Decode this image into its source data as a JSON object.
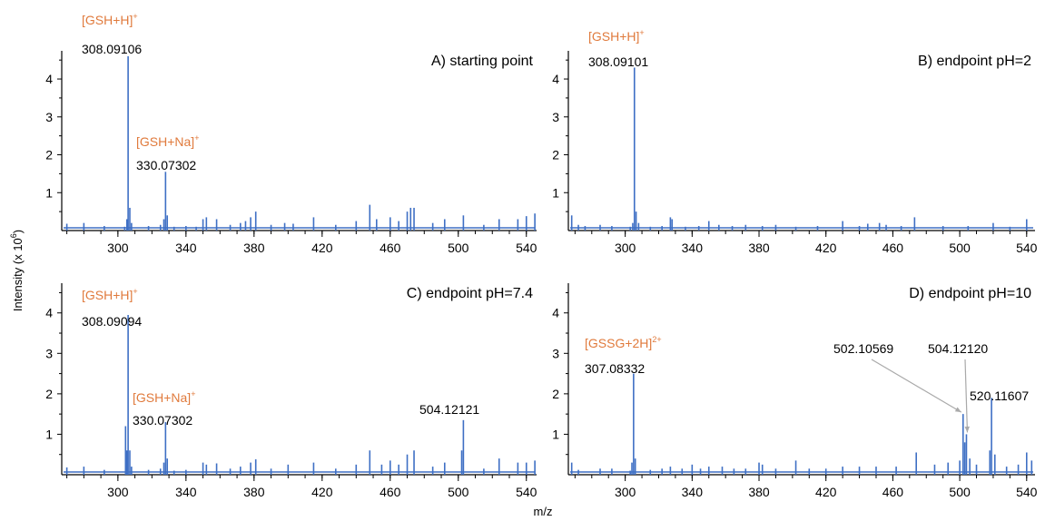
{
  "figure": {
    "xlabel": "m/z",
    "ylabel": "Intensity (x 10",
    "ylabel_sup": "6",
    "ylabel_end": ")"
  },
  "colors": {
    "spectrum": "#3e6fc4",
    "ion_label": "#e07a3c",
    "arrow": "#a9a9a9"
  },
  "chart_data": [
    {
      "type": "line",
      "panel": "A",
      "title": "A) starting point",
      "xlim": [
        267,
        546
      ],
      "ylim": [
        0,
        4.6
      ],
      "x_ticks": [
        300,
        340,
        380,
        420,
        460,
        500,
        540
      ],
      "y_ticks": [
        1,
        2,
        3,
        4
      ],
      "peaks": [
        {
          "x": 270,
          "y": 0.18
        },
        {
          "x": 280,
          "y": 0.2
        },
        {
          "x": 292,
          "y": 0.12
        },
        {
          "x": 304,
          "y": 0.1
        },
        {
          "x": 305.3,
          "y": 0.3
        },
        {
          "x": 306,
          "y": 4.6
        },
        {
          "x": 307,
          "y": 0.6
        },
        {
          "x": 308,
          "y": 0.2
        },
        {
          "x": 318,
          "y": 0.12
        },
        {
          "x": 325,
          "y": 0.15
        },
        {
          "x": 327,
          "y": 0.3
        },
        {
          "x": 328,
          "y": 1.55
        },
        {
          "x": 329,
          "y": 0.4
        },
        {
          "x": 333,
          "y": 0.1
        },
        {
          "x": 340,
          "y": 0.12
        },
        {
          "x": 346,
          "y": 0.1
        },
        {
          "x": 350,
          "y": 0.3
        },
        {
          "x": 352,
          "y": 0.35
        },
        {
          "x": 358,
          "y": 0.3
        },
        {
          "x": 366,
          "y": 0.15
        },
        {
          "x": 372,
          "y": 0.2
        },
        {
          "x": 375,
          "y": 0.25
        },
        {
          "x": 378,
          "y": 0.35
        },
        {
          "x": 381,
          "y": 0.5
        },
        {
          "x": 390,
          "y": 0.15
        },
        {
          "x": 398,
          "y": 0.2
        },
        {
          "x": 403,
          "y": 0.18
        },
        {
          "x": 415,
          "y": 0.35
        },
        {
          "x": 428,
          "y": 0.15
        },
        {
          "x": 440,
          "y": 0.25
        },
        {
          "x": 448,
          "y": 0.68
        },
        {
          "x": 452,
          "y": 0.3
        },
        {
          "x": 460,
          "y": 0.35
        },
        {
          "x": 465,
          "y": 0.25
        },
        {
          "x": 470,
          "y": 0.5
        },
        {
          "x": 472,
          "y": 0.6
        },
        {
          "x": 474,
          "y": 0.6
        },
        {
          "x": 485,
          "y": 0.2
        },
        {
          "x": 492,
          "y": 0.3
        },
        {
          "x": 503,
          "y": 0.4
        },
        {
          "x": 515,
          "y": 0.15
        },
        {
          "x": 524,
          "y": 0.3
        },
        {
          "x": 535,
          "y": 0.3
        },
        {
          "x": 540,
          "y": 0.38
        },
        {
          "x": 545,
          "y": 0.45
        }
      ],
      "annotations": [
        {
          "ion": "[GSH+H]",
          "charge": "+",
          "mz": "308.09106",
          "x": 306
        },
        {
          "ion": "[GSH+Na]",
          "charge": "+",
          "mz": "330.07302",
          "x": 328
        }
      ]
    },
    {
      "type": "line",
      "panel": "B",
      "title": "B) endpoint pH=2",
      "xlim": [
        266,
        545
      ],
      "ylim": [
        0,
        4.6
      ],
      "x_ticks": [
        300,
        340,
        380,
        420,
        460,
        500,
        540
      ],
      "y_ticks": [
        1,
        2,
        3,
        4
      ],
      "peaks": [
        {
          "x": 268,
          "y": 0.4
        },
        {
          "x": 272,
          "y": 0.15
        },
        {
          "x": 276,
          "y": 0.12
        },
        {
          "x": 285,
          "y": 0.15
        },
        {
          "x": 292,
          "y": 0.12
        },
        {
          "x": 303,
          "y": 0.1
        },
        {
          "x": 304.5,
          "y": 0.2
        },
        {
          "x": 305.5,
          "y": 4.3
        },
        {
          "x": 306.5,
          "y": 0.5
        },
        {
          "x": 308,
          "y": 0.2
        },
        {
          "x": 315,
          "y": 0.1
        },
        {
          "x": 322,
          "y": 0.12
        },
        {
          "x": 327,
          "y": 0.35
        },
        {
          "x": 328,
          "y": 0.3
        },
        {
          "x": 336,
          "y": 0.1
        },
        {
          "x": 344,
          "y": 0.12
        },
        {
          "x": 350,
          "y": 0.25
        },
        {
          "x": 356,
          "y": 0.15
        },
        {
          "x": 364,
          "y": 0.12
        },
        {
          "x": 372,
          "y": 0.15
        },
        {
          "x": 382,
          "y": 0.12
        },
        {
          "x": 390,
          "y": 0.15
        },
        {
          "x": 402,
          "y": 0.1
        },
        {
          "x": 415,
          "y": 0.12
        },
        {
          "x": 430,
          "y": 0.25
        },
        {
          "x": 440,
          "y": 0.12
        },
        {
          "x": 445,
          "y": 0.18
        },
        {
          "x": 452,
          "y": 0.2
        },
        {
          "x": 456,
          "y": 0.15
        },
        {
          "x": 465,
          "y": 0.12
        },
        {
          "x": 473,
          "y": 0.35
        },
        {
          "x": 490,
          "y": 0.12
        },
        {
          "x": 505,
          "y": 0.12
        },
        {
          "x": 520,
          "y": 0.2
        },
        {
          "x": 530,
          "y": 0.1
        },
        {
          "x": 540,
          "y": 0.3
        }
      ],
      "annotations": [
        {
          "ion": "[GSH+H]",
          "charge": "+",
          "mz": "308.09101",
          "x": 305.5
        }
      ]
    },
    {
      "type": "line",
      "panel": "C",
      "title": "C) endpoint pH=7.4",
      "xlim": [
        267,
        546
      ],
      "ylim": [
        0,
        4.6
      ],
      "x_ticks": [
        300,
        340,
        380,
        420,
        460,
        500,
        540
      ],
      "y_ticks": [
        1,
        2,
        3,
        4
      ],
      "peaks": [
        {
          "x": 270,
          "y": 0.18
        },
        {
          "x": 280,
          "y": 0.2
        },
        {
          "x": 292,
          "y": 0.12
        },
        {
          "x": 304.5,
          "y": 1.2
        },
        {
          "x": 305.3,
          "y": 0.6
        },
        {
          "x": 306,
          "y": 3.95
        },
        {
          "x": 307,
          "y": 0.6
        },
        {
          "x": 308,
          "y": 0.2
        },
        {
          "x": 318,
          "y": 0.12
        },
        {
          "x": 325,
          "y": 0.15
        },
        {
          "x": 327,
          "y": 0.3
        },
        {
          "x": 328,
          "y": 1.3
        },
        {
          "x": 329,
          "y": 0.4
        },
        {
          "x": 333,
          "y": 0.1
        },
        {
          "x": 340,
          "y": 0.12
        },
        {
          "x": 350,
          "y": 0.3
        },
        {
          "x": 352,
          "y": 0.25
        },
        {
          "x": 358,
          "y": 0.28
        },
        {
          "x": 366,
          "y": 0.15
        },
        {
          "x": 372,
          "y": 0.2
        },
        {
          "x": 378,
          "y": 0.3
        },
        {
          "x": 381,
          "y": 0.38
        },
        {
          "x": 390,
          "y": 0.15
        },
        {
          "x": 400,
          "y": 0.25
        },
        {
          "x": 415,
          "y": 0.3
        },
        {
          "x": 428,
          "y": 0.15
        },
        {
          "x": 440,
          "y": 0.25
        },
        {
          "x": 448,
          "y": 0.6
        },
        {
          "x": 455,
          "y": 0.25
        },
        {
          "x": 460,
          "y": 0.35
        },
        {
          "x": 465,
          "y": 0.25
        },
        {
          "x": 470,
          "y": 0.5
        },
        {
          "x": 474,
          "y": 0.6
        },
        {
          "x": 485,
          "y": 0.2
        },
        {
          "x": 492,
          "y": 0.3
        },
        {
          "x": 502,
          "y": 0.6
        },
        {
          "x": 503,
          "y": 1.35
        },
        {
          "x": 515,
          "y": 0.15
        },
        {
          "x": 524,
          "y": 0.4
        },
        {
          "x": 535,
          "y": 0.3
        },
        {
          "x": 540,
          "y": 0.3
        },
        {
          "x": 545,
          "y": 0.35
        }
      ],
      "annotations": [
        {
          "ion": "[GSH+H]",
          "charge": "+",
          "mz": "308.09094",
          "x": 306
        },
        {
          "ion": "[GSH+Na]",
          "charge": "+",
          "mz": "330.07302",
          "x": 328
        },
        {
          "ion": "",
          "charge": "",
          "mz": "504.12121",
          "x": 503
        }
      ]
    },
    {
      "type": "line",
      "panel": "D",
      "title": "D) endpoint pH=10",
      "xlim": [
        266,
        545
      ],
      "ylim": [
        0,
        4.6
      ],
      "x_ticks": [
        300,
        340,
        380,
        420,
        460,
        500,
        540
      ],
      "y_ticks": [
        1,
        2,
        3,
        4
      ],
      "peaks": [
        {
          "x": 268,
          "y": 0.3
        },
        {
          "x": 272,
          "y": 0.12
        },
        {
          "x": 285,
          "y": 0.15
        },
        {
          "x": 292,
          "y": 0.15
        },
        {
          "x": 303,
          "y": 0.1
        },
        {
          "x": 304,
          "y": 0.3
        },
        {
          "x": 305,
          "y": 2.5
        },
        {
          "x": 306,
          "y": 0.4
        },
        {
          "x": 315,
          "y": 0.12
        },
        {
          "x": 322,
          "y": 0.15
        },
        {
          "x": 327,
          "y": 0.2
        },
        {
          "x": 334,
          "y": 0.15
        },
        {
          "x": 340,
          "y": 0.25
        },
        {
          "x": 345,
          "y": 0.15
        },
        {
          "x": 350,
          "y": 0.2
        },
        {
          "x": 358,
          "y": 0.2
        },
        {
          "x": 365,
          "y": 0.15
        },
        {
          "x": 372,
          "y": 0.15
        },
        {
          "x": 380,
          "y": 0.3
        },
        {
          "x": 382,
          "y": 0.25
        },
        {
          "x": 390,
          "y": 0.15
        },
        {
          "x": 402,
          "y": 0.35
        },
        {
          "x": 410,
          "y": 0.15
        },
        {
          "x": 420,
          "y": 0.15
        },
        {
          "x": 430,
          "y": 0.2
        },
        {
          "x": 440,
          "y": 0.2
        },
        {
          "x": 450,
          "y": 0.2
        },
        {
          "x": 462,
          "y": 0.2
        },
        {
          "x": 474,
          "y": 0.55
        },
        {
          "x": 485,
          "y": 0.25
        },
        {
          "x": 493,
          "y": 0.3
        },
        {
          "x": 500,
          "y": 0.35
        },
        {
          "x": 502,
          "y": 1.5
        },
        {
          "x": 503,
          "y": 0.8
        },
        {
          "x": 504,
          "y": 1.0
        },
        {
          "x": 506,
          "y": 0.4
        },
        {
          "x": 510,
          "y": 0.25
        },
        {
          "x": 518,
          "y": 0.6
        },
        {
          "x": 519,
          "y": 1.9
        },
        {
          "x": 521,
          "y": 0.5
        },
        {
          "x": 528,
          "y": 0.2
        },
        {
          "x": 535,
          "y": 0.25
        },
        {
          "x": 540,
          "y": 0.55
        },
        {
          "x": 543,
          "y": 0.35
        }
      ],
      "annotations": [
        {
          "ion": "[GSSG+2H]",
          "charge": "2+",
          "mz": "307.08332",
          "x": 305
        },
        {
          "ion": "",
          "charge": "",
          "mz": "502.10569",
          "x": 502
        },
        {
          "ion": "",
          "charge": "",
          "mz": "504.12120",
          "x": 504
        },
        {
          "ion": "",
          "charge": "",
          "mz": "520.11607",
          "x": 519
        }
      ]
    }
  ]
}
